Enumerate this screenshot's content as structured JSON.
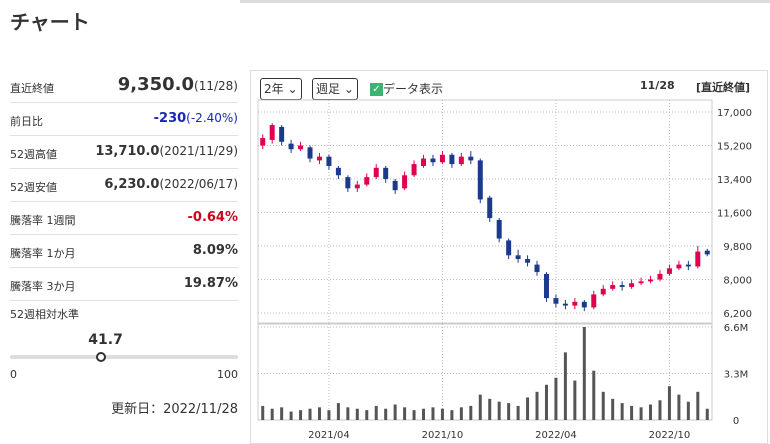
{
  "header": {
    "title": "チャート"
  },
  "stats": {
    "rows": [
      {
        "label": "直近終値",
        "value": "9,350.0",
        "note": "(11/28)",
        "color": "#333333"
      },
      {
        "label": "前日比",
        "value": "-230",
        "note": "(-2.40%)",
        "color": "#1a28b4"
      },
      {
        "label": "52週高値",
        "value": "13,710.0",
        "note": "(2021/11/29)",
        "color": "#333333"
      },
      {
        "label": "52週安値",
        "value": "6,230.0",
        "note": "(2022/06/17)",
        "color": "#333333"
      },
      {
        "label": "騰落率 1週間",
        "value": "-0.64%",
        "color": "#d0021b"
      },
      {
        "label": "騰落率 1か月",
        "value": "8.09%",
        "color": "#333333"
      },
      {
        "label": "騰落率 3か月",
        "value": "19.87%",
        "color": "#333333"
      }
    ],
    "level": {
      "label": "52週相対水準",
      "value": 41.7,
      "min": 0,
      "max": 100
    },
    "updated": "更新日：2022/11/28"
  },
  "controls": {
    "period": "2年",
    "interval": "週足",
    "show_data": "データ表示",
    "date": "11/28",
    "price_kind": "[直近終値]"
  },
  "chart_data": {
    "type": "candlestick",
    "up_color": "#e0004f",
    "down_color": "#1b3a8c",
    "volume_color": "#555555",
    "grid": true,
    "categories": [
      null,
      null,
      null,
      null,
      null,
      null,
      null,
      "2021/04",
      null,
      null,
      null,
      null,
      null,
      null,
      null,
      null,
      null,
      null,
      null,
      "2021/10",
      null,
      null,
      null,
      null,
      null,
      null,
      null,
      null,
      null,
      null,
      null,
      "2022/04",
      null,
      null,
      null,
      null,
      null,
      null,
      null,
      null,
      null,
      null,
      null,
      "2022/10",
      null,
      null,
      null,
      null
    ],
    "open": [
      15200,
      15500,
      16200,
      15300,
      15000,
      15100,
      14400,
      14600,
      14000,
      13500,
      12900,
      13100,
      13500,
      14000,
      13300,
      12900,
      13600,
      14100,
      14500,
      14300,
      14700,
      14200,
      14600,
      14400,
      12400,
      11200,
      10100,
      9300,
      9100,
      8800,
      8300,
      7000,
      6700,
      6600,
      6800,
      6500,
      7200,
      7500,
      7700,
      7600,
      7800,
      7900,
      8000,
      8300,
      8600,
      8800,
      8700,
      9550
    ],
    "high": [
      15800,
      16400,
      16300,
      15500,
      15400,
      15200,
      14800,
      14700,
      14100,
      13600,
      13300,
      13700,
      14200,
      14100,
      13400,
      13800,
      14400,
      14700,
      14700,
      14900,
      14800,
      14800,
      14900,
      14500,
      12500,
      11300,
      10200,
      9600,
      9300,
      9000,
      8400,
      7200,
      6900,
      7000,
      6900,
      7400,
      7700,
      7900,
      7900,
      8000,
      8100,
      8200,
      8500,
      8800,
      9000,
      9000,
      9800,
      9650
    ],
    "low": [
      15000,
      15300,
      15200,
      14800,
      14900,
      14300,
      14200,
      13900,
      13400,
      12700,
      12700,
      13000,
      13400,
      13200,
      12600,
      12800,
      13500,
      14000,
      14100,
      14200,
      14000,
      14100,
      14200,
      12100,
      11100,
      10000,
      9100,
      8900,
      8700,
      8200,
      6800,
      6500,
      6400,
      6400,
      6300,
      6400,
      7100,
      7400,
      7400,
      7500,
      7700,
      7800,
      7900,
      8200,
      8500,
      8500,
      8600,
      9250
    ],
    "close": [
      15600,
      16300,
      15400,
      15000,
      15200,
      14500,
      14600,
      14100,
      13600,
      12900,
      13100,
      13500,
      14000,
      13400,
      12800,
      13600,
      14200,
      14500,
      14300,
      14700,
      14200,
      14600,
      14400,
      12300,
      11300,
      10200,
      9300,
      9100,
      8900,
      8400,
      7000,
      6700,
      6600,
      6800,
      6500,
      7200,
      7500,
      7700,
      7600,
      7800,
      7900,
      8000,
      8300,
      8600,
      8800,
      8700,
      9500,
      9350
    ],
    "volume": [
      1000000,
      800000,
      900000,
      600000,
      700000,
      800000,
      900000,
      700000,
      1200000,
      900000,
      800000,
      700000,
      1000000,
      800000,
      1100000,
      900000,
      700000,
      800000,
      900000,
      800000,
      700000,
      900000,
      1000000,
      1800000,
      1500000,
      1300000,
      1200000,
      1000000,
      1600000,
      2000000,
      2500000,
      3000000,
      4800000,
      2800000,
      6600000,
      3500000,
      2000000,
      1500000,
      1200000,
      1000000,
      900000,
      1100000,
      1400000,
      2400000,
      1800000,
      1300000,
      2000000,
      800000
    ],
    "ylim": [
      6200,
      17000
    ],
    "yticks": [
      {
        "value": 6200,
        "label": "6,200"
      },
      {
        "value": 8000,
        "label": "8,000"
      },
      {
        "value": 9800,
        "label": "9,800"
      },
      {
        "value": 11600,
        "label": "11,600"
      },
      {
        "value": 13400,
        "label": "13,400"
      },
      {
        "value": 15200,
        "label": "15,200"
      },
      {
        "value": 17000,
        "label": "17,000"
      }
    ],
    "volume_lim": [
      0,
      6600000
    ],
    "volume_ticks": [
      0,
      {
        "value": 3300000,
        "label": "3.3M"
      },
      {
        "value": 6600000,
        "label": "6.6M"
      }
    ]
  }
}
